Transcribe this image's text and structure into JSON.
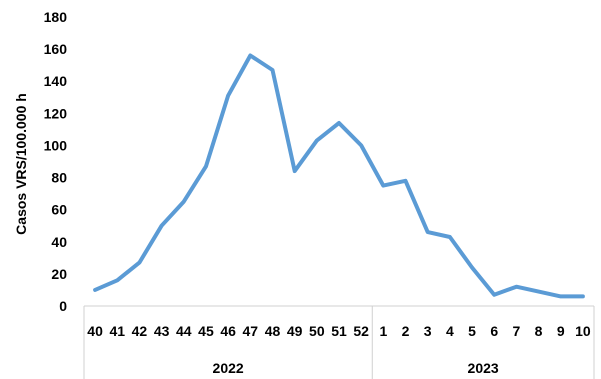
{
  "chart_data": {
    "type": "line",
    "title": "",
    "xlabel": "",
    "ylabel": "Casos VRS/100.000 h",
    "ylim": [
      0,
      180
    ],
    "yticks": [
      0,
      20,
      40,
      60,
      80,
      100,
      120,
      140,
      160,
      180
    ],
    "grid": false,
    "legend": "none",
    "series_color": "#5B9BD5",
    "categories": [
      "40",
      "41",
      "42",
      "43",
      "44",
      "45",
      "46",
      "47",
      "48",
      "49",
      "50",
      "51",
      "52",
      "1",
      "2",
      "3",
      "4",
      "5",
      "6",
      "7",
      "8",
      "9",
      "10"
    ],
    "groups": [
      {
        "label": "2022",
        "count": 13
      },
      {
        "label": "2023",
        "count": 10
      }
    ],
    "series": [
      {
        "values": [
          10,
          16,
          27,
          50,
          65,
          87,
          131,
          156,
          147,
          84,
          103,
          114,
          100,
          75,
          78,
          46,
          43,
          24,
          7,
          12,
          9,
          6,
          6
        ]
      }
    ]
  }
}
